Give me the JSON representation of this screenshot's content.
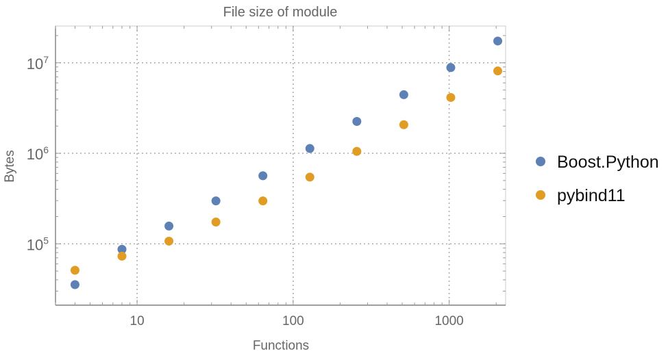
{
  "chart_data": {
    "type": "scatter",
    "title": "File size of module",
    "xlabel": "Functions",
    "ylabel": "Bytes",
    "xscale": "log",
    "yscale": "log",
    "xlim": [
      3,
      2300
    ],
    "ylim": [
      21000,
      25500000
    ],
    "xticks": [
      {
        "value": 10,
        "label": "10"
      },
      {
        "value": 100,
        "label": "100"
      },
      {
        "value": 1000,
        "label": "1000"
      }
    ],
    "yticks": [
      {
        "value": 100000,
        "base": "10",
        "exp": "5"
      },
      {
        "value": 1000000,
        "base": "10",
        "exp": "6"
      },
      {
        "value": 10000000,
        "base": "10",
        "exp": "7"
      }
    ],
    "grid": true,
    "legend_placement": "right",
    "x": [
      4,
      8,
      16,
      32,
      64,
      128,
      256,
      512,
      1024,
      2048
    ],
    "series": [
      {
        "name": "Boost.Python",
        "color": "#5e81b5",
        "values": [
          35400,
          87000,
          157000,
          298000,
          565000,
          1130000,
          2250000,
          4440000,
          8860000,
          17400000
        ]
      },
      {
        "name": "pybind11",
        "color": "#e19c24",
        "values": [
          51000,
          73000,
          107000,
          174000,
          298000,
          546000,
          1050000,
          2070000,
          4140000,
          8130000
        ]
      }
    ]
  }
}
